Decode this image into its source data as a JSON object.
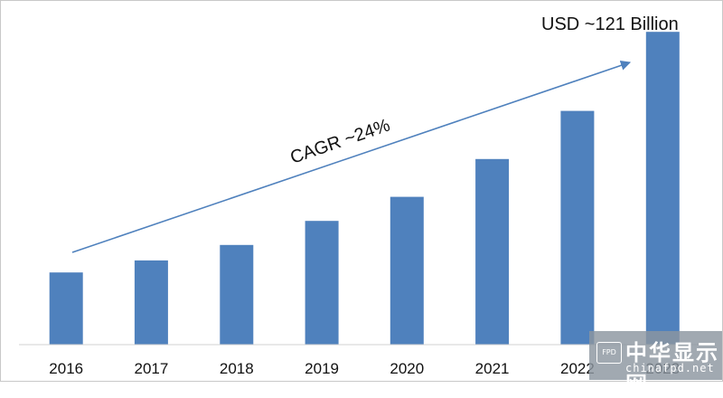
{
  "chart_data": {
    "type": "bar",
    "categories": [
      "2016",
      "2017",
      "2018",
      "2019",
      "2020",
      "2021",
      "2022",
      "2023"
    ],
    "values": [
      21,
      24.5,
      29,
      36,
      43,
      54,
      68,
      91
    ],
    "ylim": [
      0,
      100
    ],
    "grid": false,
    "legend": "none",
    "bar_color": "#4f81bd",
    "annotations": {
      "top_label": "USD ~121 Billion",
      "cagr_label": "CAGR ~24%"
    }
  },
  "watermark": {
    "badge": "FPD",
    "brand": "中华显示网",
    "url": "chinafpd.net"
  }
}
